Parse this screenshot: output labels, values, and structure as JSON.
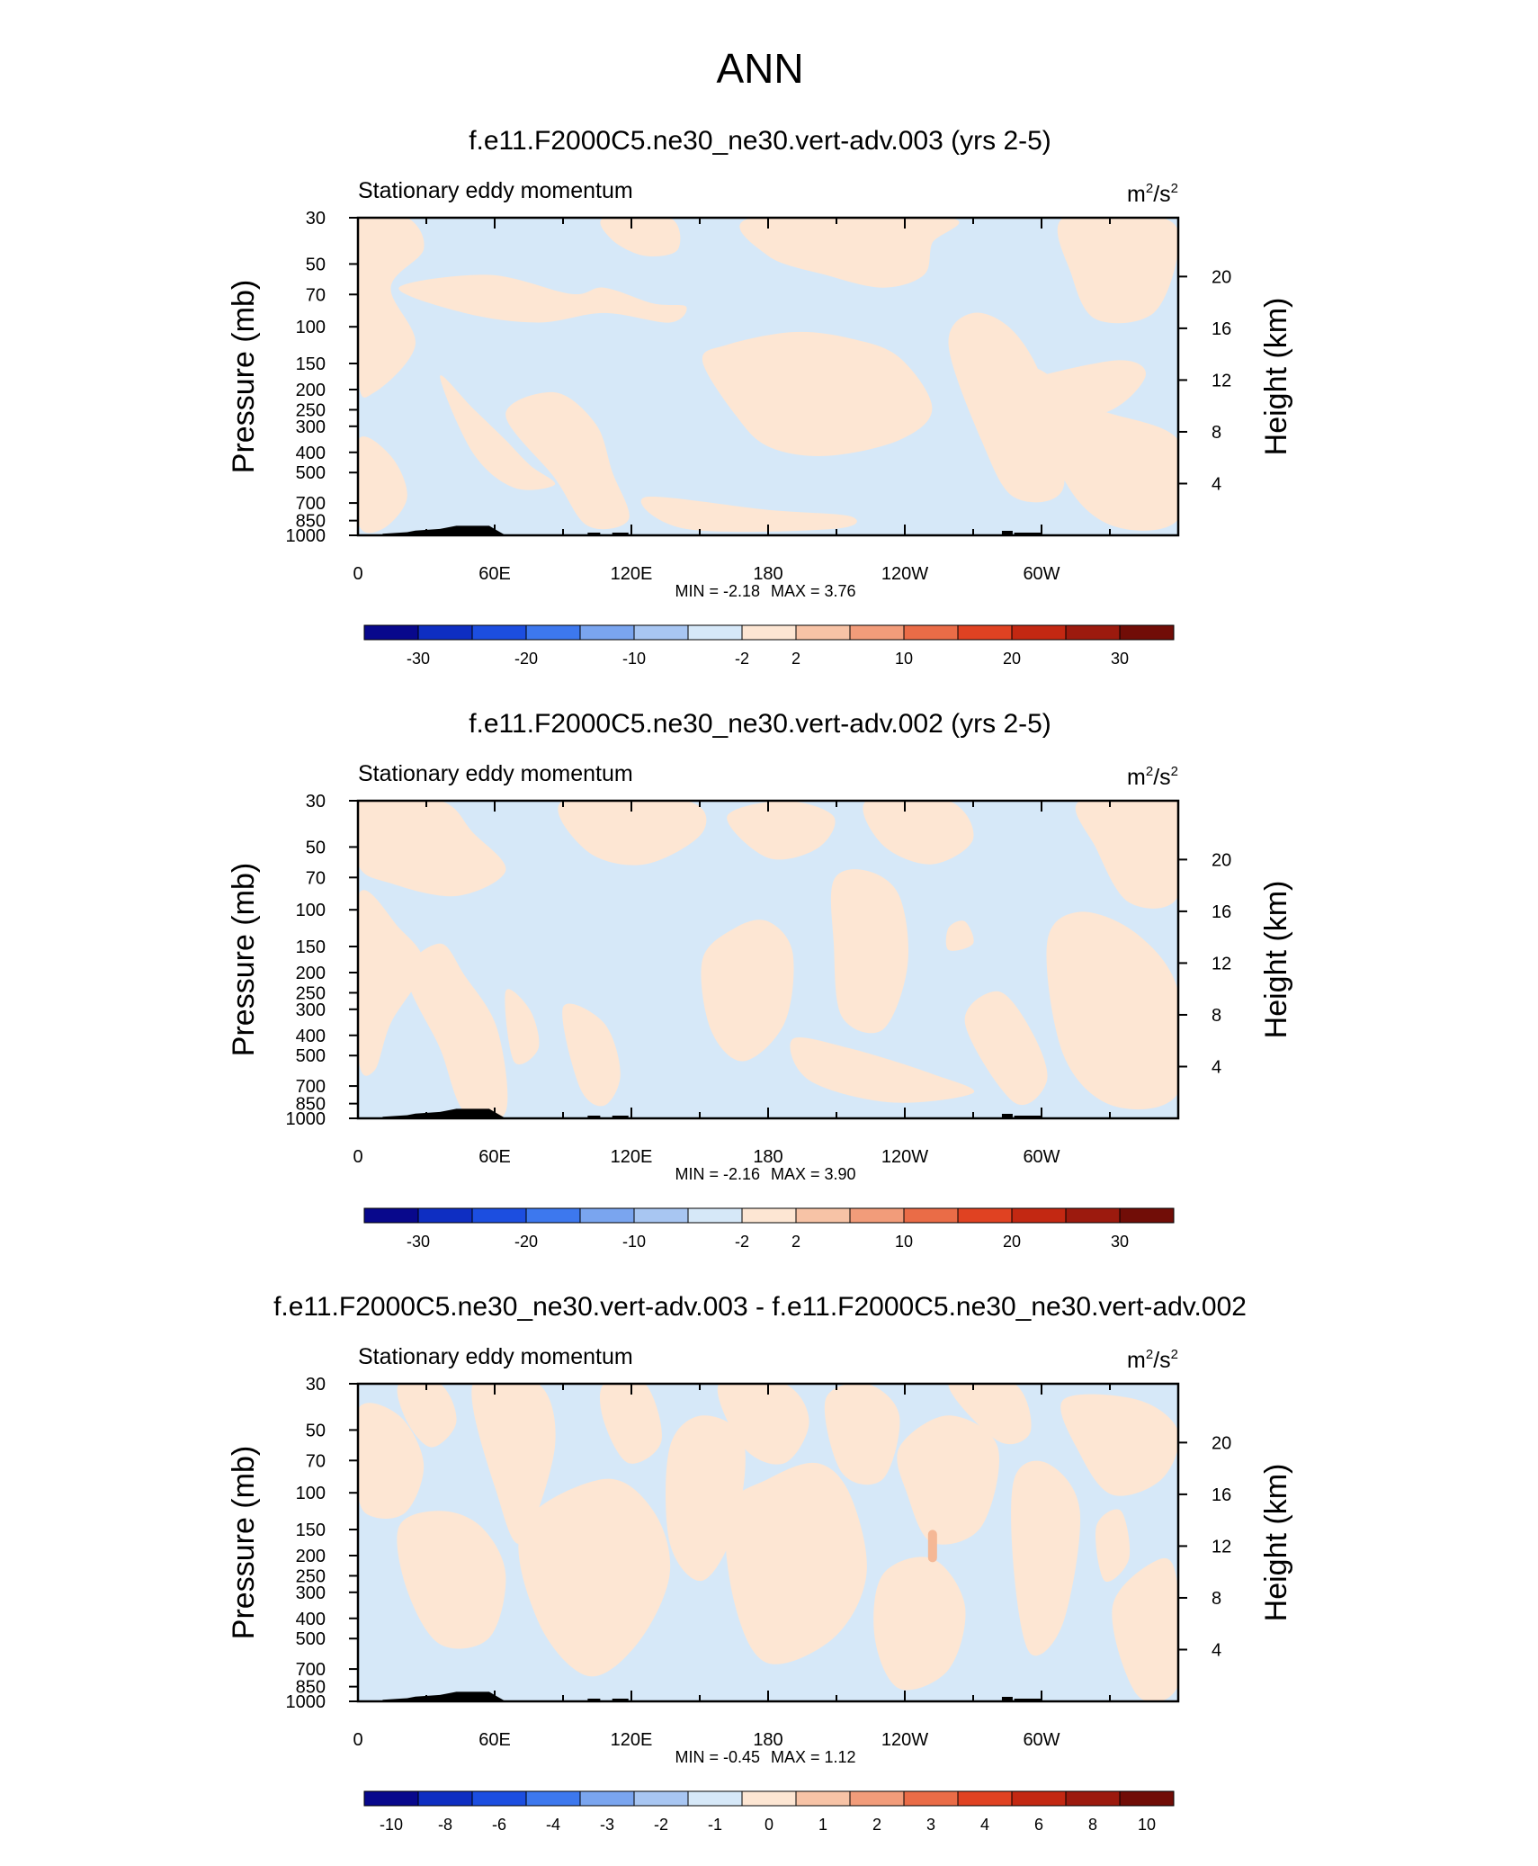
{
  "figure_title": "ANN",
  "chart_data": [
    {
      "type": "heatmap",
      "title": "f.e11.F2000C5.ne30_ne30.vert-adv.003 (yrs 2-5)",
      "left_label": "Stationary eddy momentum",
      "units": "m2/s2",
      "units_base_m": "m",
      "units_sup_m": "2",
      "units_base_s": "/s",
      "units_sup_s": "2",
      "ylabel": "Pressure (mb)",
      "ylabel_right": "Height (km)",
      "x_ticks": [
        "0",
        "60E",
        "120E",
        "180",
        "120W",
        "60W"
      ],
      "x_tick_lons": [
        0,
        60,
        120,
        180,
        240,
        300
      ],
      "xlim": [
        0,
        360
      ],
      "y_scale": "log",
      "y_ticks": [
        "30",
        "50",
        "70",
        "100",
        "150",
        "200",
        "250",
        "300",
        "400",
        "500",
        "700",
        "850",
        "1000"
      ],
      "y_tick_values": [
        30,
        50,
        70,
        100,
        150,
        200,
        250,
        300,
        400,
        500,
        700,
        850,
        1000
      ],
      "ylim": [
        1000,
        30
      ],
      "height_ticks": [
        "4",
        "8",
        "12",
        "16",
        "20"
      ],
      "height_tick_values": [
        4,
        8,
        12,
        16,
        20
      ],
      "min_label": "MIN =  -2.18",
      "max_label": "MAX =   3.76",
      "min": -2.18,
      "max": 3.76,
      "colorbar_labels": [
        "-30",
        "-20",
        "-10",
        "-2",
        "2",
        "10",
        "20",
        "30"
      ],
      "colorbar_levels": [
        -30,
        -20,
        -10,
        -2,
        2,
        10,
        20,
        30
      ],
      "colorbar_colors": [
        "#08088c",
        "#0e2ec2",
        "#1c4ee0",
        "#3d78ee",
        "#7aa5ef",
        "#a8c6f2",
        "#d6e8f8",
        "#fde6d3",
        "#f7c3a6",
        "#f29c7a",
        "#ea6c47",
        "#e04222",
        "#c32812",
        "#9c1a0e",
        "#710d07"
      ],
      "field_colors": {
        "negative": "#d6e8f8",
        "positive": "#fde6d3",
        "topography": "#000000"
      }
    },
    {
      "type": "heatmap",
      "title": "f.e11.F2000C5.ne30_ne30.vert-adv.002 (yrs 2-5)",
      "left_label": "Stationary eddy momentum",
      "units": "m2/s2",
      "units_base_m": "m",
      "units_sup_m": "2",
      "units_base_s": "/s",
      "units_sup_s": "2",
      "ylabel": "Pressure (mb)",
      "ylabel_right": "Height (km)",
      "x_ticks": [
        "0",
        "60E",
        "120E",
        "180",
        "120W",
        "60W"
      ],
      "x_tick_lons": [
        0,
        60,
        120,
        180,
        240,
        300
      ],
      "xlim": [
        0,
        360
      ],
      "y_scale": "log",
      "y_ticks": [
        "30",
        "50",
        "70",
        "100",
        "150",
        "200",
        "250",
        "300",
        "400",
        "500",
        "700",
        "850",
        "1000"
      ],
      "y_tick_values": [
        30,
        50,
        70,
        100,
        150,
        200,
        250,
        300,
        400,
        500,
        700,
        850,
        1000
      ],
      "ylim": [
        1000,
        30
      ],
      "height_ticks": [
        "4",
        "8",
        "12",
        "16",
        "20"
      ],
      "height_tick_values": [
        4,
        8,
        12,
        16,
        20
      ],
      "min_label": "MIN =  -2.16",
      "max_label": "MAX =   3.90",
      "min": -2.16,
      "max": 3.9,
      "colorbar_labels": [
        "-30",
        "-20",
        "-10",
        "-2",
        "2",
        "10",
        "20",
        "30"
      ],
      "colorbar_levels": [
        -30,
        -20,
        -10,
        -2,
        2,
        10,
        20,
        30
      ],
      "colorbar_colors": [
        "#08088c",
        "#0e2ec2",
        "#1c4ee0",
        "#3d78ee",
        "#7aa5ef",
        "#a8c6f2",
        "#d6e8f8",
        "#fde6d3",
        "#f7c3a6",
        "#f29c7a",
        "#ea6c47",
        "#e04222",
        "#c32812",
        "#9c1a0e",
        "#710d07"
      ],
      "field_colors": {
        "negative": "#d6e8f8",
        "positive": "#fde6d3",
        "topography": "#000000"
      }
    },
    {
      "type": "heatmap",
      "title": "f.e11.F2000C5.ne30_ne30.vert-adv.003 - f.e11.F2000C5.ne30_ne30.vert-adv.002",
      "left_label": "Stationary eddy momentum",
      "units": "m2/s2",
      "units_base_m": "m",
      "units_sup_m": "2",
      "units_base_s": "/s",
      "units_sup_s": "2",
      "ylabel": "Pressure (mb)",
      "ylabel_right": "Height (km)",
      "x_ticks": [
        "0",
        "60E",
        "120E",
        "180",
        "120W",
        "60W"
      ],
      "x_tick_lons": [
        0,
        60,
        120,
        180,
        240,
        300
      ],
      "xlim": [
        0,
        360
      ],
      "y_scale": "log",
      "y_ticks": [
        "30",
        "50",
        "70",
        "100",
        "150",
        "200",
        "250",
        "300",
        "400",
        "500",
        "700",
        "850",
        "1000"
      ],
      "y_tick_values": [
        30,
        50,
        70,
        100,
        150,
        200,
        250,
        300,
        400,
        500,
        700,
        850,
        1000
      ],
      "ylim": [
        1000,
        30
      ],
      "height_ticks": [
        "4",
        "8",
        "12",
        "16",
        "20"
      ],
      "height_tick_values": [
        4,
        8,
        12,
        16,
        20
      ],
      "min_label": "MIN =  -0.45",
      "max_label": "MAX =   1.12",
      "min": -0.45,
      "max": 1.12,
      "colorbar_labels": [
        "-10",
        "-8",
        "-6",
        "-4",
        "-3",
        "-2",
        "-1",
        "0",
        "1",
        "2",
        "3",
        "4",
        "6",
        "8",
        "10"
      ],
      "colorbar_levels": [
        -10,
        -8,
        -6,
        -4,
        -3,
        -2,
        -1,
        0,
        1,
        2,
        3,
        4,
        6,
        8,
        10
      ],
      "colorbar_colors": [
        "#08088c",
        "#0e2ec2",
        "#1c4ee0",
        "#3d78ee",
        "#7aa5ef",
        "#a8c6f2",
        "#d6e8f8",
        "#fde6d3",
        "#f7c3a6",
        "#f29c7a",
        "#ea6c47",
        "#e04222",
        "#c32812",
        "#9c1a0e",
        "#710d07"
      ],
      "field_colors": {
        "negative": "#d6e8f8",
        "positive": "#fde6d3",
        "strong_positive": "#f5b896",
        "topography": "#000000"
      }
    }
  ]
}
